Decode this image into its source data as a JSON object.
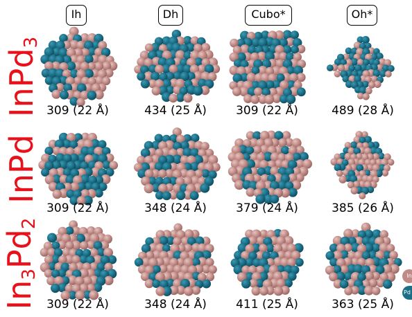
{
  "columns": [
    {
      "label": "Ih"
    },
    {
      "label": "Dh"
    },
    {
      "label": "Cubo*"
    },
    {
      "label": "Oh*"
    }
  ],
  "rows": [
    {
      "label_parts": [
        "InPd",
        "3",
        ""
      ],
      "captions": [
        "309 (22 Å)",
        "434 (25 Å)",
        "309 (22 Å)",
        "489 (28 Å)"
      ]
    },
    {
      "label_parts": [
        "InPd",
        "",
        ""
      ],
      "captions": [
        "309 (22 Å)",
        "348 (24 Å)",
        "379 (24 Å)",
        "385 (26 Å)"
      ]
    },
    {
      "label_parts": [
        "In",
        "3",
        "Pd",
        "2"
      ],
      "captions": [
        "309 (22 Å)",
        "348 (24 Å)",
        "411 (25 Å)",
        "363 (25 Å)"
      ]
    }
  ],
  "legend": [
    {
      "label": "In",
      "color": "#c08a86"
    },
    {
      "label": "Pd",
      "color": "#1a6e86"
    }
  ],
  "colors": {
    "in_atom": "#c08a86",
    "pd_atom": "#1a6e86",
    "row_label": "#e8101a"
  }
}
